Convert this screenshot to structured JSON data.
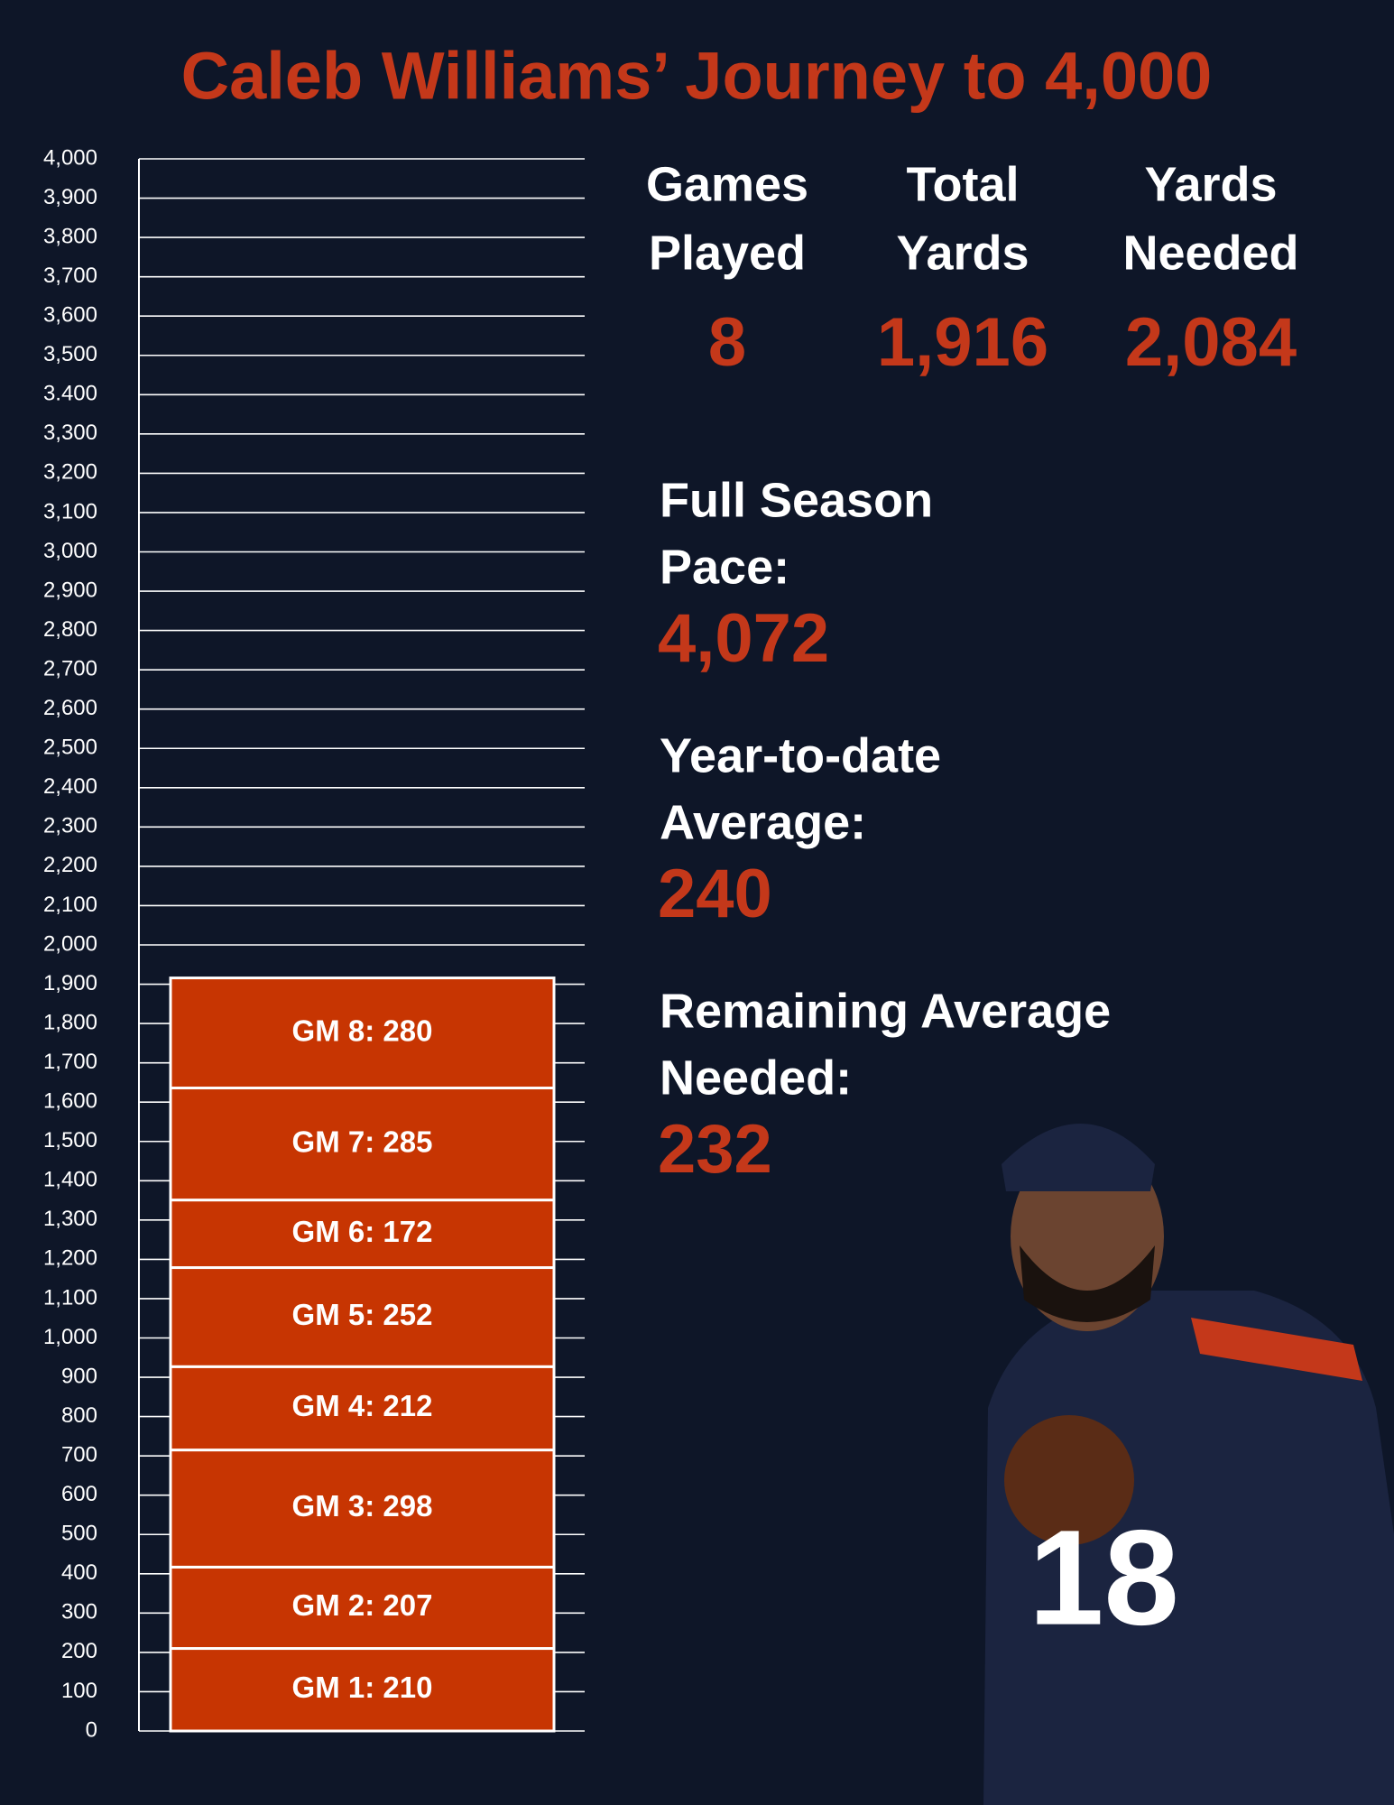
{
  "chart_data": {
    "type": "bar",
    "stacked": true,
    "title": "Caleb Williams’ Journey to 4,000",
    "categories": [
      null
    ],
    "series": [
      {
        "color": "#c73502",
        "values": [
          210
        ],
        "value_labels": [
          "GM 1: 210"
        ]
      },
      {
        "color": "#c73502",
        "values": [
          207
        ],
        "value_labels": [
          "GM 2: 207"
        ]
      },
      {
        "color": "#c73502",
        "values": [
          298
        ],
        "value_labels": [
          "GM 3: 298"
        ]
      },
      {
        "color": "#c73502",
        "values": [
          212
        ],
        "value_labels": [
          "GM 4: 212"
        ]
      },
      {
        "color": "#c73502",
        "values": [
          252
        ],
        "value_labels": [
          "GM 5: 252"
        ]
      },
      {
        "color": "#c73502",
        "values": [
          172
        ],
        "value_labels": [
          "GM 6: 172"
        ]
      },
      {
        "color": "#c73502",
        "values": [
          285
        ],
        "value_labels": [
          "GM 7: 285"
        ]
      },
      {
        "color": "#c73502",
        "values": [
          280
        ],
        "value_labels": [
          "GM 8: 280"
        ]
      }
    ],
    "ylim": [
      0,
      4000
    ],
    "yticks": [
      0,
      100,
      200,
      300,
      400,
      500,
      600,
      700,
      800,
      900,
      {
        "value": 1000,
        "label": "1,000"
      },
      {
        "value": 1100,
        "label": "1,100"
      },
      {
        "value": 1200,
        "label": "1,200"
      },
      {
        "value": 1300,
        "label": "1,300"
      },
      {
        "value": 1400,
        "label": "1,400"
      },
      {
        "value": 1500,
        "label": "1,500"
      },
      {
        "value": 1600,
        "label": "1,600"
      },
      {
        "value": 1700,
        "label": "1,700"
      },
      {
        "value": 1800,
        "label": "1,800"
      },
      {
        "value": 1900,
        "label": "1,900"
      },
      {
        "value": 2000,
        "label": "2,000"
      },
      {
        "value": 2100,
        "label": "2,100"
      },
      {
        "value": 2200,
        "label": "2,200"
      },
      {
        "value": 2300,
        "label": "2,300"
      },
      {
        "value": 2400,
        "label": "2,400"
      },
      {
        "value": 2500,
        "label": "2,500"
      },
      {
        "value": 2600,
        "label": "2,600"
      },
      {
        "value": 2700,
        "label": "2,700"
      },
      {
        "value": 2800,
        "label": "2,800"
      },
      {
        "value": 2900,
        "label": "2,900"
      },
      {
        "value": 3000,
        "label": "3,000"
      },
      {
        "value": 3100,
        "label": "3,100"
      },
      {
        "value": 3200,
        "label": "3,200"
      },
      {
        "value": 3300,
        "label": "3,300"
      },
      {
        "value": 3400,
        "label": "3.400"
      },
      {
        "value": 3500,
        "label": "3,500"
      },
      {
        "value": 3600,
        "label": "3,600"
      },
      {
        "value": 3700,
        "label": "3,700"
      },
      {
        "value": 3800,
        "label": "3,800"
      },
      {
        "value": 3900,
        "label": "3,900"
      },
      {
        "value": 4000,
        "label": "4,000"
      }
    ],
    "grid": true
  },
  "stats": {
    "columns": [
      {
        "label_lines": [
          "Games",
          "Played"
        ],
        "value": "8"
      },
      {
        "label_lines": [
          "Total",
          "Yards"
        ],
        "value": "1,916"
      },
      {
        "label_lines": [
          "Yards",
          "Needed"
        ],
        "value": "2,084"
      }
    ],
    "blocks": [
      {
        "label_lines": [
          "Full Season",
          "Pace:"
        ],
        "value": "4,072"
      },
      {
        "label_lines": [
          "Year-to-date",
          "Average:"
        ],
        "value": "240"
      },
      {
        "label_lines": [
          "Remaining Average",
          "Needed:"
        ],
        "value": "232"
      }
    ]
  }
}
